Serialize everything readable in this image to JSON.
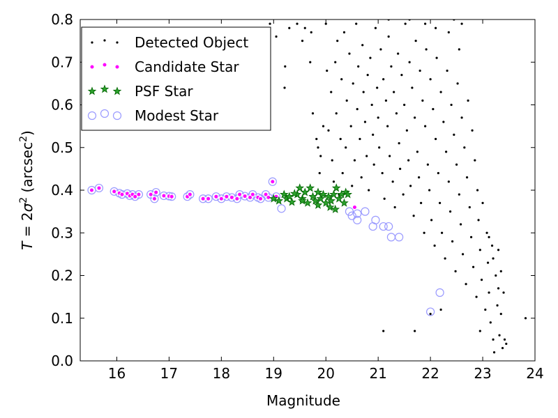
{
  "chart_data": {
    "type": "scatter",
    "xlabel": "Magnitude",
    "ylabel": {
      "prefix": "T",
      "eq": " = 2",
      "sigma": "σ",
      "sup": "2",
      "unit_open": " (arcsec",
      "unit_sup": "2",
      "unit_close": ")"
    },
    "xlim": [
      15.3,
      24.0
    ],
    "ylim": [
      0.0,
      0.8
    ],
    "xticks": [
      16,
      17,
      18,
      19,
      20,
      21,
      22,
      23,
      24
    ],
    "yticks": [
      0.0,
      0.1,
      0.2,
      0.3,
      0.4,
      0.5,
      0.6,
      0.7,
      0.8
    ],
    "grid": false,
    "legend_position": "upper-left",
    "colors": {
      "detected": "#000000",
      "candidate_fill": "#ff00ff",
      "candidate_edge": "#ffffff",
      "psf_fill": "#2ca02c",
      "psf_edge": "#006400",
      "modest_edge": "#9999ff"
    },
    "series": [
      {
        "name": "Detected Object",
        "marker": "dot",
        "points": [
          [
            18.93,
            0.79
          ],
          [
            19.05,
            0.76
          ],
          [
            19.22,
            0.69
          ],
          [
            19.21,
            0.64
          ],
          [
            19.3,
            0.78
          ],
          [
            19.45,
            0.79
          ],
          [
            19.55,
            0.75
          ],
          [
            19.6,
            0.78
          ],
          [
            19.7,
            0.7
          ],
          [
            19.72,
            0.77
          ],
          [
            19.75,
            0.58
          ],
          [
            19.82,
            0.52
          ],
          [
            19.85,
            0.5
          ],
          [
            19.88,
            0.44
          ],
          [
            19.9,
            0.48
          ],
          [
            19.95,
            0.55
          ],
          [
            20.0,
            0.79
          ],
          [
            20.02,
            0.68
          ],
          [
            20.05,
            0.54
          ],
          [
            20.1,
            0.63
          ],
          [
            20.12,
            0.47
          ],
          [
            20.15,
            0.42
          ],
          [
            20.18,
            0.7
          ],
          [
            20.2,
            0.58
          ],
          [
            20.22,
            0.75
          ],
          [
            20.25,
            0.39
          ],
          [
            20.28,
            0.52
          ],
          [
            20.3,
            0.66
          ],
          [
            20.32,
            0.44
          ],
          [
            20.35,
            0.77
          ],
          [
            20.38,
            0.5
          ],
          [
            20.4,
            0.61
          ],
          [
            20.45,
            0.72
          ],
          [
            20.48,
            0.55
          ],
          [
            20.5,
            0.41
          ],
          [
            20.52,
            0.65
          ],
          [
            20.55,
            0.47
          ],
          [
            20.58,
            0.79
          ],
          [
            20.6,
            0.59
          ],
          [
            20.62,
            0.69
          ],
          [
            20.65,
            0.52
          ],
          [
            20.68,
            0.43
          ],
          [
            20.7,
            0.74
          ],
          [
            20.72,
            0.63
          ],
          [
            20.75,
            0.56
          ],
          [
            20.78,
            0.48
          ],
          [
            20.8,
            0.67
          ],
          [
            20.82,
            0.4
          ],
          [
            20.85,
            0.71
          ],
          [
            20.88,
            0.6
          ],
          [
            20.9,
            0.53
          ],
          [
            20.92,
            0.46
          ],
          [
            20.95,
            0.78
          ],
          [
            20.98,
            0.64
          ],
          [
            21.0,
            0.57
          ],
          [
            21.02,
            0.5
          ],
          [
            21.05,
            0.73
          ],
          [
            21.08,
            0.44
          ],
          [
            21.1,
            0.66
          ],
          [
            21.12,
            0.38
          ],
          [
            21.15,
            0.61
          ],
          [
            21.18,
            0.55
          ],
          [
            21.2,
            0.76
          ],
          [
            21.22,
            0.48
          ],
          [
            21.25,
            0.69
          ],
          [
            21.28,
            0.42
          ],
          [
            21.3,
            0.63
          ],
          [
            21.32,
            0.36
          ],
          [
            21.35,
            0.58
          ],
          [
            21.38,
            0.72
          ],
          [
            21.4,
            0.51
          ],
          [
            21.42,
            0.45
          ],
          [
            21.45,
            0.67
          ],
          [
            21.48,
            0.39
          ],
          [
            21.5,
            0.6
          ],
          [
            21.52,
            0.79
          ],
          [
            21.55,
            0.54
          ],
          [
            21.58,
            0.47
          ],
          [
            21.6,
            0.7
          ],
          [
            21.62,
            0.41
          ],
          [
            21.65,
            0.64
          ],
          [
            21.68,
            0.34
          ],
          [
            21.7,
            0.57
          ],
          [
            21.72,
            0.75
          ],
          [
            21.75,
            0.49
          ],
          [
            21.78,
            0.43
          ],
          [
            21.8,
            0.68
          ],
          [
            21.82,
            0.37
          ],
          [
            21.85,
            0.61
          ],
          [
            21.88,
            0.3
          ],
          [
            21.9,
            0.55
          ],
          [
            21.92,
            0.73
          ],
          [
            21.95,
            0.46
          ],
          [
            21.98,
            0.4
          ],
          [
            22.0,
            0.66
          ],
          [
            22.02,
            0.33
          ],
          [
            22.05,
            0.59
          ],
          [
            22.08,
            0.27
          ],
          [
            22.1,
            0.52
          ],
          [
            22.12,
            0.71
          ],
          [
            22.15,
            0.44
          ],
          [
            22.18,
            0.37
          ],
          [
            22.2,
            0.63
          ],
          [
            22.22,
            0.3
          ],
          [
            22.25,
            0.56
          ],
          [
            22.28,
            0.24
          ],
          [
            22.3,
            0.49
          ],
          [
            22.32,
            0.68
          ],
          [
            22.35,
            0.42
          ],
          [
            22.38,
            0.35
          ],
          [
            22.4,
            0.6
          ],
          [
            22.42,
            0.28
          ],
          [
            22.45,
            0.53
          ],
          [
            22.48,
            0.21
          ],
          [
            22.5,
            0.46
          ],
          [
            22.52,
            0.65
          ],
          [
            22.55,
            0.39
          ],
          [
            22.58,
            0.32
          ],
          [
            22.6,
            0.57
          ],
          [
            22.62,
            0.25
          ],
          [
            22.65,
            0.5
          ],
          [
            22.68,
            0.18
          ],
          [
            22.7,
            0.43
          ],
          [
            22.72,
            0.61
          ],
          [
            22.75,
            0.36
          ],
          [
            22.78,
            0.29
          ],
          [
            22.8,
            0.54
          ],
          [
            22.82,
            0.22
          ],
          [
            22.85,
            0.47
          ],
          [
            22.88,
            0.15
          ],
          [
            22.9,
            0.4
          ],
          [
            22.92,
            0.33
          ],
          [
            22.95,
            0.26
          ],
          [
            22.98,
            0.19
          ],
          [
            23.0,
            0.37
          ],
          [
            23.05,
            0.12
          ],
          [
            23.08,
            0.3
          ],
          [
            23.1,
            0.23
          ],
          [
            23.12,
            0.16
          ],
          [
            23.15,
            0.09
          ],
          [
            23.18,
            0.27
          ],
          [
            23.2,
            0.05
          ],
          [
            23.22,
            0.02
          ],
          [
            23.25,
            0.2
          ],
          [
            23.28,
            0.13
          ],
          [
            23.3,
            0.17
          ],
          [
            23.32,
            0.06
          ],
          [
            23.35,
            0.11
          ],
          [
            23.38,
            0.03
          ],
          [
            23.42,
            0.05
          ],
          [
            23.45,
            0.04
          ],
          [
            23.82,
            0.1
          ],
          [
            21.1,
            0.07
          ],
          [
            21.7,
            0.07
          ],
          [
            22.0,
            0.11
          ],
          [
            22.2,
            0.12
          ],
          [
            22.45,
            0.8
          ],
          [
            22.55,
            0.73
          ],
          [
            22.6,
            0.79
          ],
          [
            22.35,
            0.77
          ],
          [
            21.2,
            0.8
          ],
          [
            21.6,
            0.8
          ],
          [
            21.9,
            0.79
          ],
          [
            22.1,
            0.78
          ],
          [
            23.3,
            0.26
          ],
          [
            23.2,
            0.24
          ],
          [
            23.4,
            0.16
          ],
          [
            23.35,
            0.21
          ],
          [
            23.12,
            0.29
          ],
          [
            22.95,
            0.07
          ]
        ]
      },
      {
        "name": "Candidate Star",
        "marker": "small-circle",
        "points": [
          [
            15.52,
            0.4
          ],
          [
            15.66,
            0.405
          ],
          [
            15.95,
            0.397
          ],
          [
            16.05,
            0.393
          ],
          [
            16.1,
            0.39
          ],
          [
            16.2,
            0.392
          ],
          [
            16.25,
            0.387
          ],
          [
            16.3,
            0.39
          ],
          [
            16.35,
            0.385
          ],
          [
            16.42,
            0.39
          ],
          [
            16.65,
            0.39
          ],
          [
            16.72,
            0.38
          ],
          [
            16.75,
            0.395
          ],
          [
            16.9,
            0.387
          ],
          [
            17.0,
            0.386
          ],
          [
            17.05,
            0.385
          ],
          [
            17.35,
            0.385
          ],
          [
            17.4,
            0.39
          ],
          [
            17.65,
            0.38
          ],
          [
            17.75,
            0.38
          ],
          [
            17.9,
            0.385
          ],
          [
            18.0,
            0.38
          ],
          [
            18.1,
            0.385
          ],
          [
            18.2,
            0.383
          ],
          [
            18.3,
            0.38
          ],
          [
            18.35,
            0.39
          ],
          [
            18.45,
            0.386
          ],
          [
            18.55,
            0.383
          ],
          [
            18.6,
            0.39
          ],
          [
            18.7,
            0.383
          ],
          [
            18.75,
            0.38
          ],
          [
            18.85,
            0.39
          ],
          [
            18.9,
            0.383
          ],
          [
            18.98,
            0.42
          ],
          [
            19.05,
            0.385
          ],
          [
            20.55,
            0.36
          ]
        ]
      },
      {
        "name": "PSF Star",
        "marker": "star",
        "points": [
          [
            19.0,
            0.38
          ],
          [
            19.1,
            0.375
          ],
          [
            19.2,
            0.39
          ],
          [
            19.25,
            0.38
          ],
          [
            19.3,
            0.385
          ],
          [
            19.35,
            0.372
          ],
          [
            19.45,
            0.39
          ],
          [
            19.5,
            0.405
          ],
          [
            19.55,
            0.38
          ],
          [
            19.6,
            0.395
          ],
          [
            19.65,
            0.37
          ],
          [
            19.7,
            0.405
          ],
          [
            19.75,
            0.385
          ],
          [
            19.8,
            0.375
          ],
          [
            19.85,
            0.395
          ],
          [
            19.9,
            0.38
          ],
          [
            19.95,
            0.39
          ],
          [
            20.0,
            0.37
          ],
          [
            20.05,
            0.385
          ],
          [
            20.1,
            0.375
          ],
          [
            20.15,
            0.39
          ],
          [
            20.2,
            0.405
          ],
          [
            20.25,
            0.38
          ],
          [
            20.3,
            0.39
          ],
          [
            20.35,
            0.37
          ],
          [
            20.38,
            0.395
          ],
          [
            20.42,
            0.39
          ],
          [
            19.55,
            0.375
          ],
          [
            19.4,
            0.392
          ],
          [
            20.08,
            0.36
          ],
          [
            19.85,
            0.365
          ],
          [
            20.18,
            0.355
          ]
        ]
      },
      {
        "name": "Modest Star",
        "marker": "open-circle",
        "points": [
          [
            15.52,
            0.4
          ],
          [
            15.66,
            0.405
          ],
          [
            15.95,
            0.397
          ],
          [
            16.05,
            0.393
          ],
          [
            16.1,
            0.39
          ],
          [
            16.2,
            0.392
          ],
          [
            16.25,
            0.387
          ],
          [
            16.3,
            0.39
          ],
          [
            16.35,
            0.385
          ],
          [
            16.42,
            0.39
          ],
          [
            16.65,
            0.39
          ],
          [
            16.72,
            0.38
          ],
          [
            16.75,
            0.395
          ],
          [
            16.9,
            0.387
          ],
          [
            17.0,
            0.386
          ],
          [
            17.05,
            0.385
          ],
          [
            17.35,
            0.385
          ],
          [
            17.4,
            0.39
          ],
          [
            17.65,
            0.38
          ],
          [
            17.75,
            0.38
          ],
          [
            17.9,
            0.385
          ],
          [
            18.0,
            0.38
          ],
          [
            18.1,
            0.385
          ],
          [
            18.2,
            0.383
          ],
          [
            18.3,
            0.38
          ],
          [
            18.35,
            0.39
          ],
          [
            18.45,
            0.386
          ],
          [
            18.55,
            0.383
          ],
          [
            18.6,
            0.39
          ],
          [
            18.7,
            0.383
          ],
          [
            18.75,
            0.38
          ],
          [
            18.85,
            0.39
          ],
          [
            18.9,
            0.383
          ],
          [
            18.98,
            0.42
          ],
          [
            19.05,
            0.385
          ],
          [
            19.15,
            0.357
          ],
          [
            20.45,
            0.35
          ],
          [
            20.5,
            0.34
          ],
          [
            20.6,
            0.345
          ],
          [
            20.75,
            0.35
          ],
          [
            20.95,
            0.33
          ],
          [
            20.9,
            0.315
          ],
          [
            21.1,
            0.315
          ],
          [
            21.2,
            0.315
          ],
          [
            21.25,
            0.29
          ],
          [
            21.4,
            0.29
          ],
          [
            20.6,
            0.33
          ],
          [
            22.18,
            0.16
          ],
          [
            22.0,
            0.115
          ]
        ]
      }
    ]
  }
}
